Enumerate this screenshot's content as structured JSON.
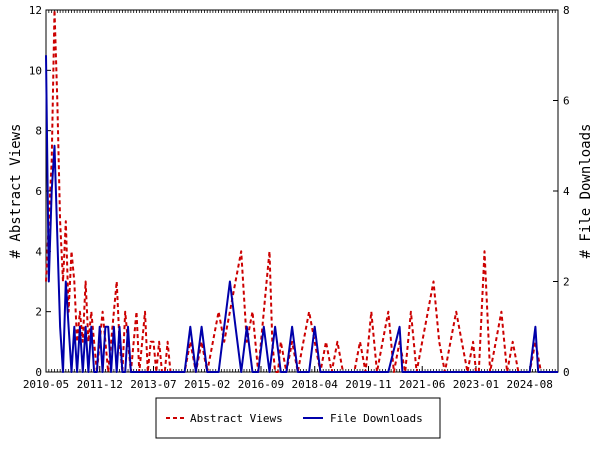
{
  "chart_data": {
    "type": "line",
    "y_left_label": "# Abstract Views",
    "y_right_label": "# File Downloads",
    "y_left_lim": [
      0,
      12
    ],
    "y_right_lim": [
      0,
      8
    ],
    "y_left_ticks": [
      "0",
      "2",
      "4",
      "6",
      "8",
      "10",
      "12"
    ],
    "y_right_ticks": [
      "0",
      "2",
      "4",
      "6",
      "8"
    ],
    "x_start": "2010-05",
    "x_end": "2025-06",
    "x_tick_labels": [
      "2010-05",
      "2011-12",
      "2013-07",
      "2015-02",
      "2016-09",
      "2018-04",
      "2019-11",
      "2021-06",
      "2023-01",
      "2024-08"
    ],
    "grid": false,
    "legend_position": "bottom",
    "series": [
      {
        "name": "Abstract Views",
        "axis": "left",
        "color": "#cc0000",
        "dash": true,
        "x": [
          "2010-05",
          "2010-06",
          "2010-07",
          "2010-08",
          "2010-09",
          "2010-10",
          "2010-11",
          "2010-12",
          "2011-01",
          "2011-02",
          "2011-03",
          "2011-04",
          "2011-05",
          "2011-06",
          "2011-07",
          "2011-08",
          "2011-09",
          "2011-10",
          "2011-11",
          "2011-12",
          "2012-01",
          "2012-02",
          "2012-03",
          "2012-04",
          "2012-05",
          "2012-06",
          "2012-07",
          "2012-08",
          "2012-09",
          "2012-10",
          "2012-11",
          "2012-12",
          "2013-01",
          "2013-02",
          "2013-03",
          "2013-04",
          "2013-05",
          "2013-06",
          "2013-07",
          "2013-08",
          "2013-09",
          "2013-10",
          "2013-11",
          "2013-12",
          "2014-01",
          "2014-04",
          "2014-06",
          "2014-08",
          "2014-10",
          "2014-12",
          "2015-02",
          "2015-04",
          "2015-06",
          "2015-08",
          "2015-10",
          "2015-12",
          "2016-02",
          "2016-04",
          "2016-06",
          "2016-08",
          "2016-09",
          "2016-10",
          "2016-11",
          "2016-12",
          "2017-01",
          "2017-02",
          "2017-03",
          "2017-04",
          "2017-06",
          "2017-08",
          "2017-10",
          "2017-12",
          "2018-02",
          "2018-04",
          "2018-06",
          "2018-08",
          "2018-10",
          "2018-12",
          "2019-02",
          "2019-04",
          "2019-06",
          "2019-08",
          "2019-10",
          "2019-12",
          "2020-02",
          "2020-04",
          "2020-06",
          "2020-08",
          "2020-10",
          "2020-12",
          "2021-02",
          "2021-04",
          "2021-06",
          "2021-08",
          "2021-10",
          "2021-12",
          "2022-02",
          "2022-04",
          "2022-06",
          "2022-08",
          "2022-10",
          "2022-12",
          "2023-01",
          "2023-02",
          "2023-04",
          "2023-06",
          "2023-08",
          "2023-10",
          "2023-12",
          "2024-02",
          "2024-04",
          "2024-06",
          "2024-08",
          "2024-10",
          "2024-12",
          "2025-02",
          "2025-04",
          "2025-06"
        ],
        "values": [
          3,
          5,
          7,
          12,
          9,
          5,
          3,
          5,
          2,
          4,
          3,
          1,
          2,
          1,
          3,
          1,
          2,
          1,
          0,
          1,
          2,
          1,
          0,
          1,
          2,
          3,
          1,
          0,
          2,
          1,
          0,
          1,
          2,
          0,
          1,
          2,
          0,
          1,
          1,
          0,
          1,
          0,
          0,
          1,
          0,
          0,
          0,
          1,
          0,
          1,
          0,
          1,
          2,
          1,
          2,
          3,
          4,
          1,
          2,
          0,
          1,
          2,
          3,
          4,
          1,
          0,
          0,
          1,
          0,
          1,
          0,
          1,
          2,
          1,
          0,
          1,
          0,
          1,
          0,
          0,
          0,
          1,
          0,
          2,
          0,
          1,
          2,
          0,
          1,
          0,
          2,
          0,
          1,
          2,
          3,
          1,
          0,
          1,
          2,
          1,
          0,
          1,
          0,
          0,
          4,
          0,
          1,
          2,
          0,
          1,
          0,
          0,
          0,
          1,
          0,
          0,
          0,
          0
        ]
      },
      {
        "name": "File Downloads",
        "axis": "right",
        "color": "#0000aa",
        "dash": false,
        "x": [
          "2010-05",
          "2010-06",
          "2010-07",
          "2010-08",
          "2010-09",
          "2010-10",
          "2010-11",
          "2010-12",
          "2011-01",
          "2011-02",
          "2011-03",
          "2011-04",
          "2011-05",
          "2011-06",
          "2011-07",
          "2011-08",
          "2011-09",
          "2011-10",
          "2011-11",
          "2011-12",
          "2012-01",
          "2012-02",
          "2012-03",
          "2012-04",
          "2012-05",
          "2012-06",
          "2012-07",
          "2012-08",
          "2012-09",
          "2012-10",
          "2012-11",
          "2012-12",
          "2013-01",
          "2013-02",
          "2013-03",
          "2013-04",
          "2013-06",
          "2013-08",
          "2013-10",
          "2013-12",
          "2014-02",
          "2014-04",
          "2014-06",
          "2014-08",
          "2014-10",
          "2014-12",
          "2015-02",
          "2015-04",
          "2015-06",
          "2015-08",
          "2015-10",
          "2015-12",
          "2016-02",
          "2016-04",
          "2016-06",
          "2016-08",
          "2016-10",
          "2016-12",
          "2017-02",
          "2017-04",
          "2017-06",
          "2017-08",
          "2017-10",
          "2017-12",
          "2018-02",
          "2018-04",
          "2018-06",
          "2018-08",
          "2018-10",
          "2018-12",
          "2019-02",
          "2019-06",
          "2019-10",
          "2020-02",
          "2020-06",
          "2020-10",
          "2020-11",
          "2020-12",
          "2021-02",
          "2021-06",
          "2021-10",
          "2022-02",
          "2022-06",
          "2022-10",
          "2023-02",
          "2023-06",
          "2023-10",
          "2024-02",
          "2024-06",
          "2024-08",
          "2024-10",
          "2024-11",
          "2024-12",
          "2025-02",
          "2025-06"
        ],
        "values": [
          7,
          2,
          4,
          5,
          3,
          1,
          0,
          2,
          1,
          0,
          1,
          0,
          1,
          0,
          1,
          0,
          1,
          0,
          0,
          1,
          0,
          1,
          1,
          0,
          1,
          0,
          1,
          0,
          0,
          1,
          0,
          0,
          0,
          0,
          0,
          0,
          0,
          0,
          0,
          0,
          0,
          0,
          0,
          1,
          0,
          1,
          0,
          0,
          0,
          1,
          2,
          1,
          0,
          1,
          0,
          0,
          1,
          0,
          1,
          0,
          0,
          1,
          0,
          0,
          0,
          1,
          0,
          0,
          0,
          0,
          0,
          0,
          0,
          0,
          0,
          1,
          0,
          0,
          0,
          0,
          0,
          0,
          0,
          0,
          0,
          0,
          0,
          0,
          0,
          0,
          1,
          0,
          0,
          0,
          0
        ]
      }
    ]
  }
}
